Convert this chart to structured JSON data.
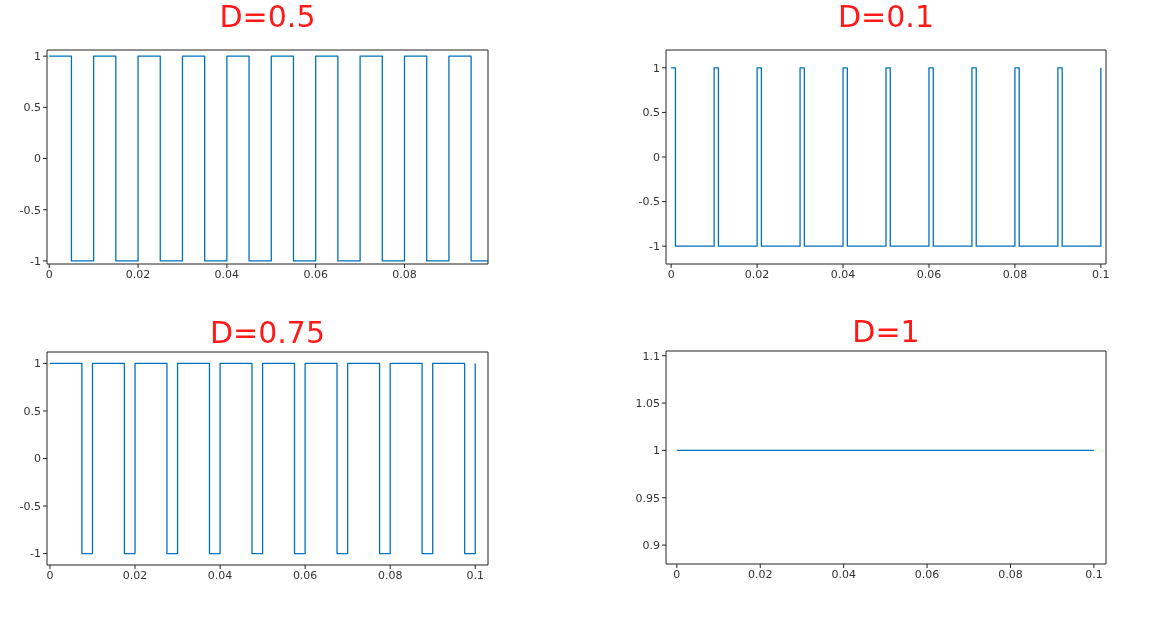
{
  "chart_data": [
    {
      "type": "step",
      "title": "D=0.5",
      "color": "#0072bd",
      "xlim": [
        -0.0005,
        0.0988
      ],
      "ylim": [
        -1.03,
        1.06
      ],
      "xticks": [
        0,
        0.02,
        0.04,
        0.06,
        0.08
      ],
      "yticks": [
        -1,
        -0.5,
        0,
        0.5,
        1
      ],
      "x": [
        0,
        0.005,
        0.01,
        0.015,
        0.02,
        0.025,
        0.03,
        0.035,
        0.04,
        0.045,
        0.05,
        0.055,
        0.06,
        0.065,
        0.07,
        0.075,
        0.08,
        0.085,
        0.09,
        0.095,
        0.0988
      ],
      "values": [
        1,
        -1,
        1,
        -1,
        1,
        -1,
        1,
        -1,
        1,
        -1,
        1,
        -1,
        1,
        -1,
        1,
        -1,
        1,
        -1,
        1,
        -1,
        -1
      ]
    },
    {
      "type": "step",
      "title": "D=0.1",
      "color": "#0072bd",
      "xlim": [
        -0.0012,
        0.1012
      ],
      "ylim": [
        -1.2,
        1.2
      ],
      "xticks": [
        0,
        0.02,
        0.04,
        0.06,
        0.08,
        0.1
      ],
      "yticks": [
        -1,
        -0.5,
        0,
        0.5,
        1
      ],
      "x": [
        0,
        0.001,
        0.01,
        0.011,
        0.02,
        0.021,
        0.03,
        0.031,
        0.04,
        0.041,
        0.05,
        0.051,
        0.06,
        0.061,
        0.07,
        0.071,
        0.08,
        0.081,
        0.09,
        0.091,
        0.1
      ],
      "values": [
        1,
        -1,
        1,
        -1,
        1,
        -1,
        1,
        -1,
        1,
        -1,
        1,
        -1,
        1,
        -1,
        1,
        -1,
        1,
        -1,
        1,
        -1,
        1
      ]
    },
    {
      "type": "step",
      "title": "D=0.75",
      "color": "#0072bd",
      "xlim": [
        -0.0007,
        0.103
      ],
      "ylim": [
        -1.12,
        1.12
      ],
      "xticks": [
        0,
        0.02,
        0.04,
        0.06,
        0.08,
        0.1
      ],
      "yticks": [
        -1,
        -0.5,
        0,
        0.5,
        1
      ],
      "x": [
        0,
        0.0075,
        0.01,
        0.0175,
        0.02,
        0.0275,
        0.03,
        0.0375,
        0.04,
        0.0475,
        0.05,
        0.0575,
        0.06,
        0.0675,
        0.07,
        0.0775,
        0.08,
        0.0875,
        0.09,
        0.0975,
        0.1
      ],
      "values": [
        1,
        -1,
        1,
        -1,
        1,
        -1,
        1,
        -1,
        1,
        -1,
        1,
        -1,
        1,
        -1,
        1,
        -1,
        1,
        -1,
        1,
        -1,
        1
      ]
    },
    {
      "type": "line",
      "title": "D=1",
      "color": "#0072bd",
      "xlim": [
        -0.0026,
        0.1029
      ],
      "ylim": [
        0.88,
        1.105
      ],
      "xticks": [
        0,
        0.02,
        0.04,
        0.06,
        0.08,
        0.1
      ],
      "yticks": [
        0.9,
        0.95,
        1,
        1.05,
        1.1
      ],
      "x": [
        0,
        0.1
      ],
      "values": [
        1,
        1
      ]
    }
  ]
}
